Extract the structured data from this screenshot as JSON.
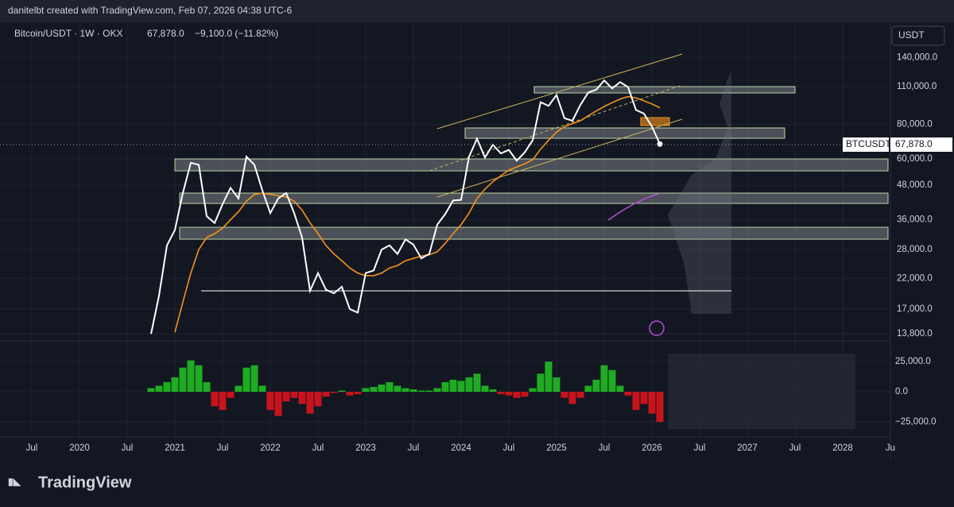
{
  "header": {
    "text": "danitelbt created with TradingView.com, Feb 07, 2026 04:38 UTC-6"
  },
  "legend": {
    "symbol": "Bitcoin/USDT · 1W · OKX",
    "change": "−9,100.0 (−11.82%)"
  },
  "last_price": {
    "value": 67878,
    "label": "67,878.0"
  },
  "currency_button": "USDT",
  "price_tag": "BTCUSDT",
  "footer": {
    "logo": "TradingView"
  },
  "chart_data": [
    {
      "type": "line",
      "log_scale": true,
      "grid": true,
      "x": [
        "2020-10",
        "2020-11",
        "2020-12",
        "2021-01",
        "2021-02",
        "2021-03",
        "2021-04",
        "2021-05",
        "2021-06",
        "2021-07",
        "2021-08",
        "2021-09",
        "2021-10",
        "2021-11",
        "2021-12",
        "2022-01",
        "2022-02",
        "2022-03",
        "2022-04",
        "2022-05",
        "2022-06",
        "2022-07",
        "2022-08",
        "2022-09",
        "2022-10",
        "2022-11",
        "2022-12",
        "2023-01",
        "2023-02",
        "2023-03",
        "2023-04",
        "2023-05",
        "2023-06",
        "2023-07",
        "2023-08",
        "2023-09",
        "2023-10",
        "2023-11",
        "2023-12",
        "2024-01",
        "2024-02",
        "2024-03",
        "2024-04",
        "2024-05",
        "2024-06",
        "2024-07",
        "2024-08",
        "2024-09",
        "2024-10",
        "2024-11",
        "2024-12",
        "2025-01",
        "2025-02",
        "2025-03",
        "2025-04",
        "2025-05",
        "2025-06",
        "2025-07",
        "2025-08",
        "2025-09",
        "2025-10",
        "2025-11",
        "2025-12",
        "2026-01",
        "2026-02"
      ],
      "series": [
        {
          "color": "#ffffff",
          "values": [
            13800,
            19000,
            29000,
            33000,
            45000,
            58000,
            57000,
            37000,
            35000,
            41000,
            47000,
            43000,
            61000,
            57000,
            46000,
            38000,
            43000,
            45000,
            38000,
            31000,
            19800,
            23000,
            20000,
            19400,
            20500,
            17000,
            16500,
            23000,
            23500,
            28000,
            29000,
            27000,
            30500,
            29200,
            26000,
            27000,
            34500,
            37700,
            42300,
            42500,
            61000,
            71000,
            60600,
            67500,
            62700,
            64600,
            59000,
            63300,
            70000,
            96400,
            93400,
            102400,
            84300,
            82500,
            94200,
            104600,
            107100,
            115700,
            108200,
            114000,
            109500,
            90300,
            87600,
            78600,
            67878
          ]
        },
        {
          "color": "#f7931a",
          "values": [
            null,
            null,
            null,
            14000,
            18000,
            23000,
            28000,
            31000,
            32000,
            33500,
            36000,
            38500,
            42000,
            44500,
            45000,
            44500,
            44000,
            43500,
            42000,
            39000,
            35000,
            32000,
            29000,
            27000,
            25500,
            24000,
            23000,
            22500,
            22500,
            23000,
            24000,
            24500,
            25500,
            26000,
            26500,
            26800,
            27500,
            29500,
            32000,
            34500,
            38000,
            43000,
            46500,
            49500,
            52000,
            54500,
            56000,
            57500,
            59500,
            65000,
            70000,
            75000,
            78500,
            80500,
            82500,
            86000,
            89500,
            93000,
            96000,
            99000,
            101000,
            100000,
            97500,
            95000,
            92000
          ]
        }
      ],
      "ylim": [
        13100,
        186000
      ],
      "yticks": [
        {
          "value": 13800,
          "label": "13,800.0"
        },
        {
          "value": 17000,
          "label": "17,000.0"
        },
        {
          "value": 22000,
          "label": "22,000.0"
        },
        {
          "value": 28000,
          "label": "28,000.0"
        },
        {
          "value": 36000,
          "label": "36,000.0"
        },
        {
          "value": 48000,
          "label": "48,000.0"
        },
        {
          "value": 60000,
          "label": "60,000.0"
        },
        {
          "value": 80000,
          "label": "80,000.0"
        },
        {
          "value": 110000,
          "label": "110,000.0"
        },
        {
          "value": 140000,
          "label": "140,000.0"
        }
      ],
      "xlim": [
        "2019-03",
        "2028-07"
      ],
      "xticks": [
        {
          "value": "2019-07",
          "label": "Jul"
        },
        {
          "value": "2020-01",
          "label": "2020"
        },
        {
          "value": "2020-07",
          "label": "Jul"
        },
        {
          "value": "2021-01",
          "label": "2021"
        },
        {
          "value": "2021-07",
          "label": "Jul"
        },
        {
          "value": "2022-01",
          "label": "2022"
        },
        {
          "value": "2022-07",
          "label": "Jul"
        },
        {
          "value": "2023-01",
          "label": "2023"
        },
        {
          "value": "2023-07",
          "label": "Jul"
        },
        {
          "value": "2024-01",
          "label": "2024"
        },
        {
          "value": "2024-07",
          "label": "Jul"
        },
        {
          "value": "2025-01",
          "label": "2025"
        },
        {
          "value": "2025-07",
          "label": "Jul"
        },
        {
          "value": "2026-01",
          "label": "2026"
        },
        {
          "value": "2026-07",
          "label": "Jul"
        },
        {
          "value": "2027-01",
          "label": "2027"
        },
        {
          "value": "2027-07",
          "label": "Jul"
        },
        {
          "value": "2028-01",
          "label": "2028"
        },
        {
          "value": "2028-07",
          "label": "Ju"
        }
      ]
    },
    {
      "type": "bar",
      "up_color": "#22c722",
      "down_color": "#e8141b",
      "x": [
        "2020-10",
        "2020-11",
        "2020-12",
        "2021-01",
        "2021-02",
        "2021-03",
        "2021-04",
        "2021-05",
        "2021-06",
        "2021-07",
        "2021-08",
        "2021-09",
        "2021-10",
        "2021-11",
        "2021-12",
        "2022-01",
        "2022-02",
        "2022-03",
        "2022-04",
        "2022-05",
        "2022-06",
        "2022-07",
        "2022-08",
        "2022-09",
        "2022-10",
        "2022-11",
        "2022-12",
        "2023-01",
        "2023-02",
        "2023-03",
        "2023-04",
        "2023-05",
        "2023-06",
        "2023-07",
        "2023-08",
        "2023-09",
        "2023-10",
        "2023-11",
        "2023-12",
        "2024-01",
        "2024-02",
        "2024-03",
        "2024-04",
        "2024-05",
        "2024-06",
        "2024-07",
        "2024-08",
        "2024-09",
        "2024-10",
        "2024-11",
        "2024-12",
        "2025-01",
        "2025-02",
        "2025-03",
        "2025-04",
        "2025-05",
        "2025-06",
        "2025-07",
        "2025-08",
        "2025-09",
        "2025-10",
        "2025-11",
        "2025-12",
        "2026-01",
        "2026-02"
      ],
      "values": [
        3000,
        5000,
        8000,
        12000,
        20000,
        26000,
        22000,
        8000,
        -12000,
        -15000,
        -5000,
        5000,
        20000,
        22000,
        5000,
        -15000,
        -20000,
        -8000,
        -5000,
        -10000,
        -18000,
        -12000,
        -4000,
        -1000,
        1000,
        -3000,
        -2000,
        3000,
        4000,
        6000,
        8000,
        5000,
        3000,
        2000,
        1000,
        1000,
        3000,
        8000,
        10000,
        9000,
        12000,
        15000,
        5000,
        2000,
        -2000,
        -3000,
        -5000,
        -4000,
        3000,
        15000,
        25000,
        12000,
        -5000,
        -10000,
        -5000,
        5000,
        10000,
        22000,
        18000,
        5000,
        -3000,
        -15000,
        -10000,
        -18000,
        -25000
      ],
      "ylim": [
        -37500,
        41500
      ],
      "yticks": [
        {
          "value": 25000,
          "label": "25,000.0"
        },
        {
          "value": 0,
          "label": "0.0"
        },
        {
          "value": -25000,
          "label": "−25,000.0"
        }
      ]
    }
  ]
}
